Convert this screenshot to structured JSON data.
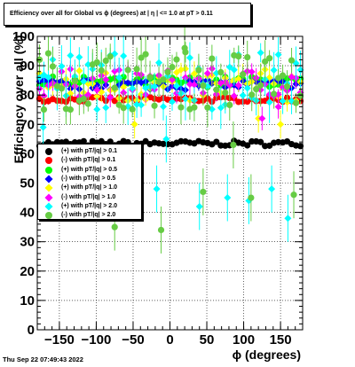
{
  "title": "Efficiency over all for Global vs ϕ (degrees) at |  η | <= 1.0 at pT > 0.11",
  "date": "Thu Sep 22 07:49:43 2022",
  "chart_data": {
    "type": "scatter",
    "title": "Efficiency over all for Global vs ϕ (degrees) at |  η | <= 1.0 at pT > 0.11",
    "xlabel": "ϕ (degrees)",
    "ylabel": "Efficiency over all (%)",
    "xlim": [
      -180,
      180
    ],
    "ylim": [
      0,
      100
    ],
    "x_ticks": [
      -150,
      -100,
      -50,
      0,
      50,
      100,
      150
    ],
    "x_tick_labels": [
      "−150",
      "−100",
      "−50",
      "0",
      "50",
      "100",
      "150"
    ],
    "y_ticks": [
      0,
      10,
      20,
      30,
      40,
      50,
      60,
      70,
      80,
      90,
      100
    ],
    "y_tick_labels": [
      "0",
      "10",
      "20",
      "30",
      "40",
      "50",
      "60",
      "70",
      "80",
      "90",
      "100"
    ],
    "grid": true,
    "legend_position": "left",
    "series": [
      {
        "name": "(+) with pT/|q| > 0.1",
        "color": "#000000",
        "marker": "circle",
        "center": 63.5,
        "spread": 0.9,
        "err": 0.7,
        "outliers": []
      },
      {
        "name": "(-) with pT/|q| > 0.1",
        "color": "#ff0000",
        "marker": "circle",
        "center": 78.5,
        "spread": 0.9,
        "err": 0.8,
        "outliers": []
      },
      {
        "name": "(+) with pT/|q| > 0.5",
        "color": "#00ff00",
        "marker": "circle",
        "center": 84.5,
        "spread": 1.8,
        "err": 1.2,
        "outliers": []
      },
      {
        "name": "(-) with pT/|q| > 0.5",
        "color": "#0000ff",
        "marker": "diamond",
        "center": 83.5,
        "spread": 1.8,
        "err": 1.2,
        "outliers": []
      },
      {
        "name": "(+) with pT/|q| > 1.0",
        "color": "#ffff00",
        "marker": "diamond",
        "center": 83.0,
        "spread": 6,
        "err": 3,
        "outliers": [
          [
            -48,
            70
          ],
          [
            120,
            72
          ],
          [
            150,
            70
          ]
        ]
      },
      {
        "name": "(-) with pT/|q| > 1.0",
        "color": "#ff00ff",
        "marker": "diamond",
        "center": 84.0,
        "spread": 5,
        "err": 2.5,
        "outliers": [
          [
            125,
            72
          ],
          [
            147,
            76
          ]
        ]
      },
      {
        "name": "(+) with pT/|q| > 2.0",
        "color": "#00ffff",
        "marker": "diamond",
        "center": 85.0,
        "spread": 10,
        "err": 5,
        "outliers": [
          [
            -18,
            48
          ],
          [
            -5,
            65
          ],
          [
            40,
            42
          ],
          [
            78,
            45
          ],
          [
            107,
            44
          ],
          [
            138,
            48
          ],
          [
            160,
            38
          ],
          [
            -172,
            69
          ]
        ]
      },
      {
        "name": "(-) with pT/|q| > 2.0",
        "color": "#66cc44",
        "marker": "circle",
        "center": 85.0,
        "spread": 10,
        "err": 5,
        "outliers": [
          [
            -75,
            35
          ],
          [
            -12,
            34
          ],
          [
            45,
            47
          ],
          [
            110,
            45
          ],
          [
            168,
            46
          ],
          [
            86,
            63
          ],
          [
            20,
            96
          ]
        ]
      }
    ]
  }
}
